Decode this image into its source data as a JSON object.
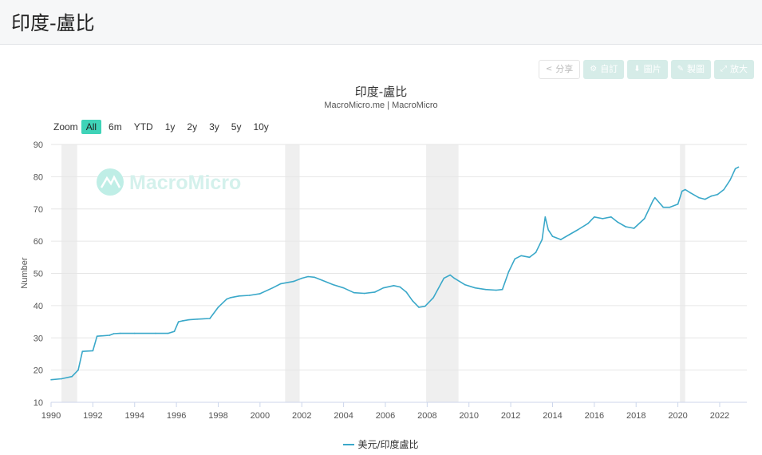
{
  "page": {
    "title": "印度-盧比"
  },
  "toolbar": {
    "share": "分享",
    "subscribe": "自訂",
    "image": "圖片",
    "edit": "製圖",
    "fullscreen": "放大"
  },
  "zoom": {
    "label": "Zoom",
    "buttons": [
      "All",
      "6m",
      "YTD",
      "1y",
      "2y",
      "3y",
      "5y",
      "10y"
    ],
    "active": "All"
  },
  "watermark": "MacroMicro",
  "colors": {
    "series": "#3aa8c9",
    "accent": "#3fd3b8",
    "recession": "#efefef"
  },
  "chart_data": {
    "type": "line",
    "title": "印度-盧比",
    "subtitle": "MacroMicro.me | MacroMicro",
    "xlabel": "",
    "ylabel": "Number",
    "xlim": [
      1990,
      2023.3
    ],
    "ylim": [
      10,
      90
    ],
    "x_ticks": [
      1990,
      1992,
      1994,
      1996,
      1998,
      2000,
      2002,
      2004,
      2006,
      2008,
      2010,
      2012,
      2014,
      2016,
      2018,
      2020,
      2022
    ],
    "y_ticks": [
      10,
      20,
      30,
      40,
      50,
      60,
      70,
      80,
      90
    ],
    "grid": true,
    "legend": "bottom-center",
    "recession_bands": [
      [
        1990.5,
        1991.25
      ],
      [
        2001.2,
        2001.9
      ],
      [
        2007.95,
        2009.5
      ],
      [
        2020.1,
        2020.35
      ]
    ],
    "series": [
      {
        "name": "美元/印度盧比",
        "x": [
          1990.0,
          1990.5,
          1991.0,
          1991.3,
          1991.5,
          1992.0,
          1992.2,
          1992.8,
          1993.0,
          1993.3,
          1994.0,
          1995.0,
          1995.6,
          1995.9,
          1996.1,
          1996.3,
          1996.6,
          1997.0,
          1997.6,
          1998.0,
          1998.4,
          1998.6,
          1999.0,
          1999.5,
          2000.0,
          2000.6,
          2001.0,
          2001.6,
          2002.0,
          2002.3,
          2002.6,
          2003.0,
          2003.5,
          2004.0,
          2004.5,
          2005.0,
          2005.5,
          2005.9,
          2006.4,
          2006.7,
          2007.0,
          2007.3,
          2007.6,
          2007.9,
          2008.3,
          2008.8,
          2009.1,
          2009.3,
          2009.8,
          2010.3,
          2010.8,
          2011.3,
          2011.6,
          2011.9,
          2012.2,
          2012.5,
          2012.9,
          2013.2,
          2013.5,
          2013.65,
          2013.8,
          2014.0,
          2014.4,
          2014.8,
          2015.2,
          2015.7,
          2016.0,
          2016.4,
          2016.8,
          2017.1,
          2017.5,
          2017.9,
          2018.4,
          2018.8,
          2018.9,
          2019.3,
          2019.6,
          2020.0,
          2020.2,
          2020.35,
          2020.6,
          2021.0,
          2021.3,
          2021.6,
          2021.9,
          2022.2,
          2022.5,
          2022.75,
          2022.9
        ],
        "values": [
          17.0,
          17.3,
          18.0,
          20.0,
          25.8,
          26.0,
          30.5,
          30.8,
          31.3,
          31.4,
          31.4,
          31.4,
          31.4,
          32.0,
          35.0,
          35.3,
          35.6,
          35.8,
          36.0,
          39.5,
          42.0,
          42.5,
          43.0,
          43.2,
          43.7,
          45.5,
          46.8,
          47.5,
          48.5,
          49.0,
          48.8,
          47.8,
          46.5,
          45.5,
          44.0,
          43.8,
          44.2,
          45.5,
          46.2,
          45.8,
          44.2,
          41.5,
          39.5,
          39.8,
          42.5,
          48.5,
          49.5,
          48.5,
          46.5,
          45.5,
          45.0,
          44.8,
          45.0,
          50.5,
          54.5,
          55.5,
          55.0,
          56.5,
          60.5,
          67.5,
          63.5,
          61.5,
          60.5,
          62.0,
          63.5,
          65.5,
          67.5,
          67.0,
          67.5,
          66.0,
          64.5,
          64.0,
          67.0,
          72.5,
          73.5,
          70.5,
          70.5,
          71.5,
          75.5,
          76.0,
          75.0,
          73.5,
          73.0,
          74.0,
          74.5,
          76.0,
          79.0,
          82.5,
          83.0
        ]
      }
    ]
  }
}
